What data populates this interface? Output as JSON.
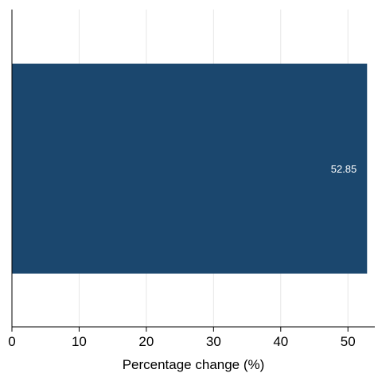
{
  "chart_data": {
    "type": "bar",
    "orientation": "horizontal",
    "title": "",
    "categories": [
      ""
    ],
    "values": [
      52.85
    ],
    "data_labels": [
      "52.85"
    ],
    "xlabel": "Percentage change (%)",
    "ylabel": "",
    "xlim": [
      0,
      54
    ],
    "xticks": [
      0,
      10,
      20,
      30,
      40,
      50
    ],
    "xtick_labels": [
      "0",
      "10",
      "20",
      "30",
      "40",
      "50"
    ],
    "grid": "vertical",
    "colors": {
      "bar": "#1b476e",
      "grid": "#e6e6e6",
      "axis": "#000000",
      "data_label": "#ffffff"
    }
  }
}
